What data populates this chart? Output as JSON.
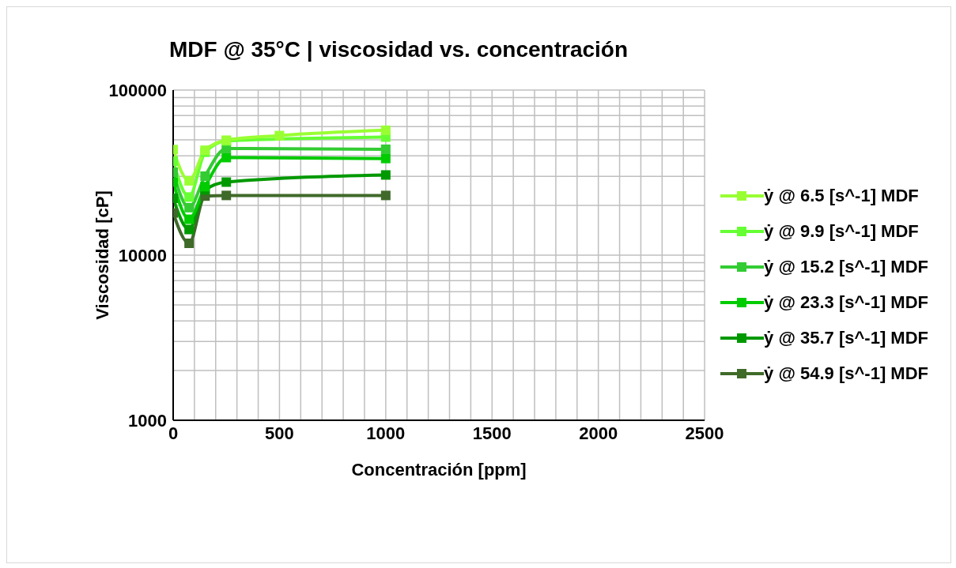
{
  "chart_data": {
    "type": "line",
    "title": "MDF @ 35°C | viscosidad vs. concentración",
    "xlabel": "Concentración [ppm]",
    "ylabel": "Viscosidad [cP]",
    "xlim": [
      0,
      2500
    ],
    "xticks": [
      0,
      500,
      1000,
      1500,
      2000,
      2500
    ],
    "ylim": [
      1000,
      100000
    ],
    "yticks": [
      1000,
      10000,
      100000
    ],
    "log": "y",
    "grid": true,
    "legend": "right",
    "marker": "square",
    "line_style": "solid",
    "series": [
      {
        "name": "ẏ @ 6.5 [s^-1] MDF",
        "color": "#99ff33",
        "x": [
          0,
          75,
          150,
          250,
          500,
          1000
        ],
        "values": [
          43600,
          28200,
          43200,
          49700,
          53000,
          57100
        ]
      },
      {
        "name": "ẏ @ 9.9 [s^-1] MDF",
        "color": "#66ff33",
        "x": [
          0,
          75,
          150,
          250,
          1000
        ],
        "values": [
          37100,
          22500,
          42000,
          49200,
          51900
        ]
      },
      {
        "name": "ẏ @ 15.2 [s^-1] MDF",
        "color": "#33cc33",
        "x": [
          0,
          75,
          150,
          250,
          1000
        ],
        "values": [
          31800,
          19400,
          30100,
          44300,
          43800
        ]
      },
      {
        "name": "ẏ @ 23.3 [s^-1] MDF",
        "color": "#00cc00",
        "x": [
          0,
          75,
          150,
          250,
          1000
        ],
        "values": [
          27700,
          16500,
          26000,
          39000,
          38500
        ]
      },
      {
        "name": "ẏ @ 35.7 [s^-1] MDF",
        "color": "#009900",
        "x": [
          0,
          75,
          150,
          250,
          1000
        ],
        "values": [
          22100,
          14300,
          24800,
          27700,
          30600
        ]
      },
      {
        "name": "ẏ @ 54.9 [s^-1] MDF",
        "color": "#3f6a2a",
        "x": [
          0,
          75,
          150,
          250,
          1000
        ],
        "values": [
          18000,
          11800,
          22800,
          23000,
          23000
        ]
      }
    ]
  }
}
